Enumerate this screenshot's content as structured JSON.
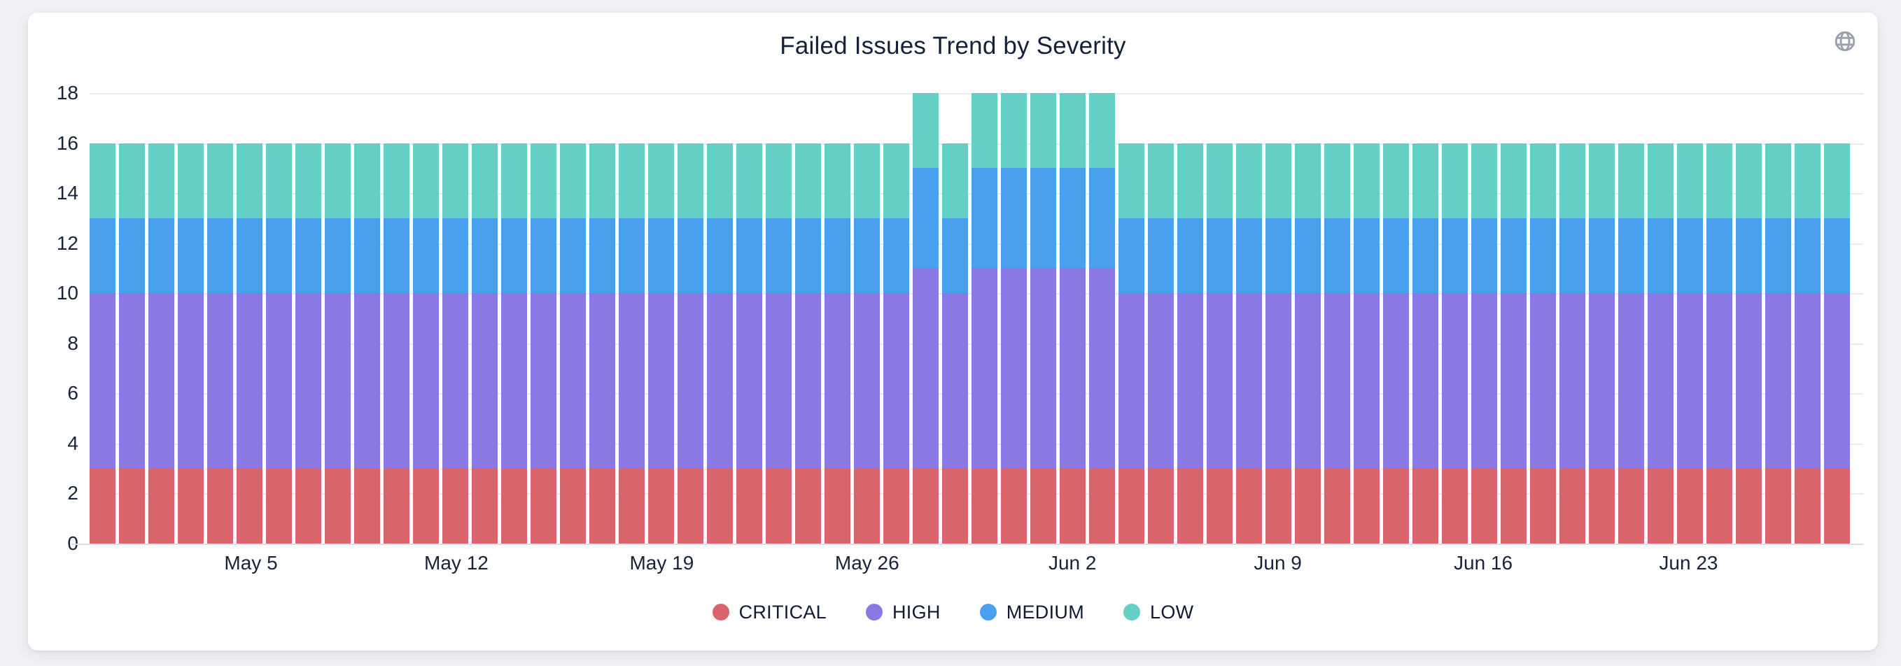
{
  "page": {
    "background_color": "#f0f1f4",
    "card_color": "#ffffff"
  },
  "header": {
    "title": "Failed Issues Trend by Severity",
    "icon": "globe"
  },
  "chart_data": {
    "type": "bar",
    "stacked": true,
    "title": "Failed Issues Trend by Severity",
    "xlabel": "",
    "ylabel": "",
    "ylim": [
      0,
      18
    ],
    "yticks": [
      0,
      2,
      4,
      6,
      8,
      10,
      12,
      14,
      16,
      18
    ],
    "grid": true,
    "legend_position": "bottom",
    "categories": [
      "Apr 30",
      "May 1",
      "May 2",
      "May 3",
      "May 4",
      "May 5",
      "May 6",
      "May 7",
      "May 8",
      "May 9",
      "May 10",
      "May 11",
      "May 12",
      "May 13",
      "May 14",
      "May 15",
      "May 16",
      "May 17",
      "May 18",
      "May 19",
      "May 20",
      "May 21",
      "May 22",
      "May 23",
      "May 24",
      "May 25",
      "May 26",
      "May 27",
      "May 28",
      "May 29",
      "May 30",
      "May 31",
      "Jun 1",
      "Jun 2",
      "Jun 3",
      "Jun 4",
      "Jun 5",
      "Jun 6",
      "Jun 7",
      "Jun 8",
      "Jun 9",
      "Jun 10",
      "Jun 11",
      "Jun 12",
      "Jun 13",
      "Jun 14",
      "Jun 15",
      "Jun 16",
      "Jun 17",
      "Jun 18",
      "Jun 19",
      "Jun 20",
      "Jun 21",
      "Jun 22",
      "Jun 23",
      "Jun 24",
      "Jun 25",
      "Jun 26",
      "Jun 27",
      "Jun 28"
    ],
    "x_tick_indices": [
      5,
      12,
      19,
      26,
      33,
      40,
      47,
      54
    ],
    "x_tick_labels": [
      "May 5",
      "May 12",
      "May 19",
      "May 26",
      "Jun 2",
      "Jun 9",
      "Jun 16",
      "Jun 23"
    ],
    "series": [
      {
        "name": "CRITICAL",
        "color": "#d9646b",
        "values": [
          3,
          3,
          3,
          3,
          3,
          3,
          3,
          3,
          3,
          3,
          3,
          3,
          3,
          3,
          3,
          3,
          3,
          3,
          3,
          3,
          3,
          3,
          3,
          3,
          3,
          3,
          3,
          3,
          3,
          3,
          3,
          3,
          3,
          3,
          3,
          3,
          3,
          3,
          3,
          3,
          3,
          3,
          3,
          3,
          3,
          3,
          3,
          3,
          3,
          3,
          3,
          3,
          3,
          3,
          3,
          3,
          3,
          3,
          3,
          3
        ]
      },
      {
        "name": "HIGH",
        "color": "#8a79e3",
        "values": [
          7,
          7,
          7,
          7,
          7,
          7,
          7,
          7,
          7,
          7,
          7,
          7,
          7,
          7,
          7,
          7,
          7,
          7,
          7,
          7,
          7,
          7,
          7,
          7,
          7,
          7,
          7,
          7,
          8,
          7,
          8,
          8,
          8,
          8,
          8,
          7,
          7,
          7,
          7,
          7,
          7,
          7,
          7,
          7,
          7,
          7,
          7,
          7,
          7,
          7,
          7,
          7,
          7,
          7,
          7,
          7,
          7,
          7,
          7,
          7
        ]
      },
      {
        "name": "MEDIUM",
        "color": "#4aa0ed",
        "values": [
          3,
          3,
          3,
          3,
          3,
          3,
          3,
          3,
          3,
          3,
          3,
          3,
          3,
          3,
          3,
          3,
          3,
          3,
          3,
          3,
          3,
          3,
          3,
          3,
          3,
          3,
          3,
          3,
          4,
          3,
          4,
          4,
          4,
          4,
          4,
          3,
          3,
          3,
          3,
          3,
          3,
          3,
          3,
          3,
          3,
          3,
          3,
          3,
          3,
          3,
          3,
          3,
          3,
          3,
          3,
          3,
          3,
          3,
          3,
          3
        ]
      },
      {
        "name": "LOW",
        "color": "#64cfc4",
        "values": [
          3,
          3,
          3,
          3,
          3,
          3,
          3,
          3,
          3,
          3,
          3,
          3,
          3,
          3,
          3,
          3,
          3,
          3,
          3,
          3,
          3,
          3,
          3,
          3,
          3,
          3,
          3,
          3,
          3,
          3,
          3,
          3,
          3,
          3,
          3,
          3,
          3,
          3,
          3,
          3,
          3,
          3,
          3,
          3,
          3,
          3,
          3,
          3,
          3,
          3,
          3,
          3,
          3,
          3,
          3,
          3,
          3,
          3,
          3,
          3
        ]
      }
    ],
    "colors": {
      "grid": "#e9ebf0",
      "baseline": "#d8deee",
      "axis_text": "#1a2438",
      "title_text": "#15203a",
      "icon": "#9ba1ac"
    }
  }
}
